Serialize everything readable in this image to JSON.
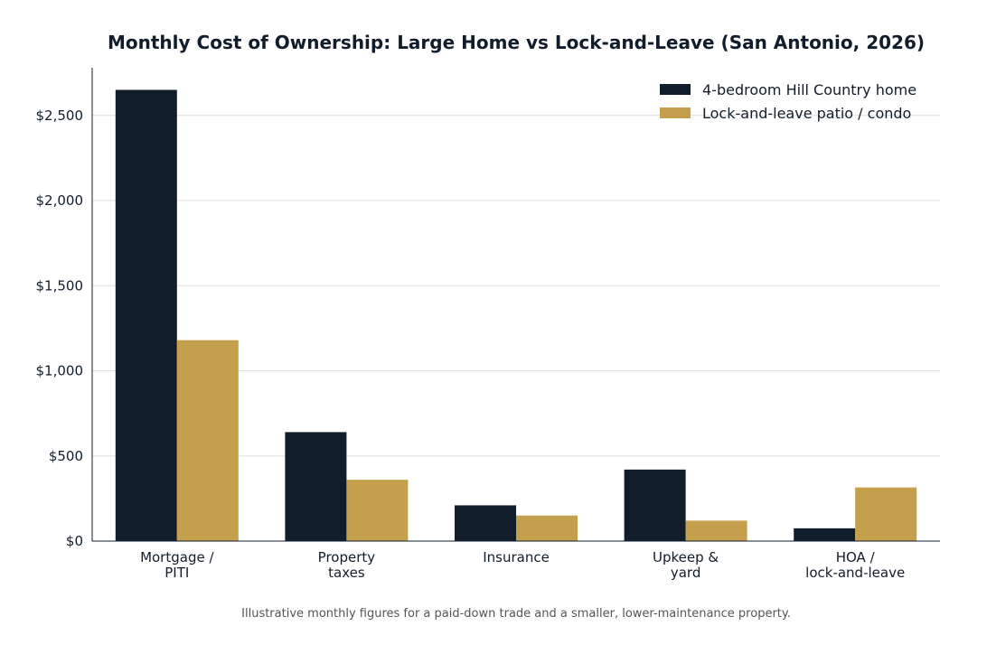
{
  "chart_data": {
    "type": "bar",
    "title": "Monthly Cost of Ownership: Large Home vs Lock-and-Leave (San Antonio, 2026)",
    "categories": [
      [
        "Mortgage /",
        "PITI"
      ],
      [
        "Property",
        "taxes"
      ],
      [
        "Insurance"
      ],
      [
        "Upkeep &",
        "yard"
      ],
      [
        "HOA /",
        "lock-and-leave"
      ]
    ],
    "series": [
      {
        "name": "4-bedroom Hill Country home",
        "color": "#111d2b",
        "values": [
          2650,
          640,
          210,
          420,
          75
        ]
      },
      {
        "name": "Lock-and-leave patio / condo",
        "color": "#c49f4c",
        "values": [
          1180,
          360,
          150,
          120,
          315
        ]
      }
    ],
    "ylim": [
      0,
      2780
    ],
    "yticks": [
      0,
      500,
      1000,
      1500,
      2000,
      2500
    ],
    "ytick_labels": [
      "$0",
      "$500",
      "$1,000",
      "$1,500",
      "$2,000",
      "$2,500"
    ],
    "grid": true,
    "legend_position": "top-right",
    "caption": "Illustrative monthly figures for a paid-down trade and a smaller, lower-maintenance property."
  }
}
